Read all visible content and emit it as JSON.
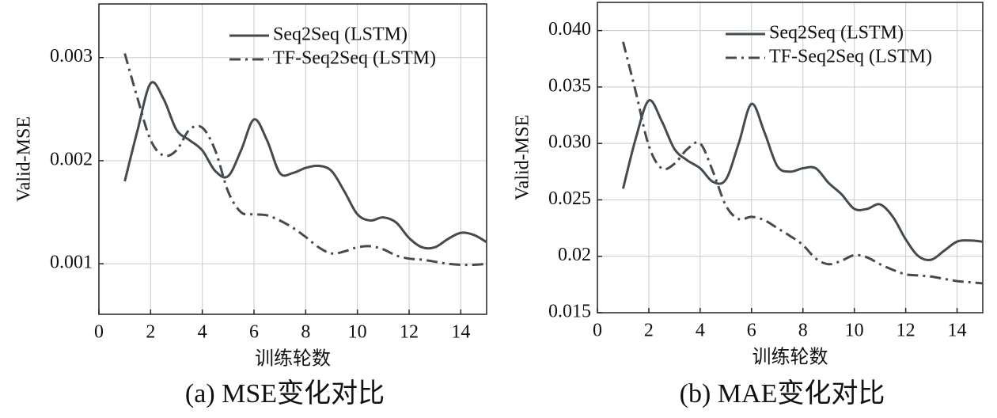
{
  "chart_data": [
    {
      "type": "line",
      "caption": "(a) MSE变化对比",
      "xlabel": "训练轮数",
      "ylabel": "Valid-MSE",
      "x": [
        1,
        1.5,
        2,
        2.5,
        3,
        3.5,
        4,
        4.5,
        5,
        5.5,
        6,
        6.5,
        7,
        7.5,
        8,
        8.5,
        9,
        9.5,
        10,
        10.5,
        11,
        11.5,
        12,
        12.5,
        13,
        13.5,
        14,
        14.5,
        15
      ],
      "series": [
        {
          "name": "Seq2Seq (LSTM)",
          "color": "#434b50",
          "style": "solid",
          "values": [
            0.0018,
            0.0023,
            0.00275,
            0.0026,
            0.0023,
            0.0022,
            0.0021,
            0.0019,
            0.00185,
            0.0021,
            0.0024,
            0.0022,
            0.00188,
            0.00188,
            0.00193,
            0.00195,
            0.0019,
            0.0017,
            0.00148,
            0.00142,
            0.00145,
            0.0014,
            0.00125,
            0.00116,
            0.00116,
            0.00124,
            0.0013,
            0.00128,
            0.00121
          ]
        },
        {
          "name": "TF-Seq2Seq (LSTM)",
          "color": "#434b50",
          "style": "dashdot",
          "values": [
            0.00304,
            0.0026,
            0.0022,
            0.00205,
            0.0021,
            0.0023,
            0.00232,
            0.0021,
            0.0017,
            0.0015,
            0.00148,
            0.00147,
            0.00142,
            0.00135,
            0.00126,
            0.00116,
            0.0011,
            0.00112,
            0.00116,
            0.00117,
            0.00114,
            0.00108,
            0.00105,
            0.00104,
            0.00102,
            0.001,
            0.00099,
            0.00099,
            0.001
          ]
        }
      ],
      "xlim": [
        0,
        15
      ],
      "ylim": [
        0.00051,
        0.00352
      ],
      "xticks": [
        0,
        2,
        4,
        6,
        8,
        10,
        12,
        14
      ],
      "yticks": [
        0.001,
        0.002,
        0.003
      ],
      "grid": true,
      "legend": "upper right"
    },
    {
      "type": "line",
      "caption": "(b) MAE变化对比",
      "xlabel": "训练轮数",
      "ylabel": "Valid-MSE",
      "x": [
        1,
        1.5,
        2,
        2.5,
        3,
        3.5,
        4,
        4.5,
        5,
        5.5,
        6,
        6.5,
        7,
        7.5,
        8,
        8.5,
        9,
        9.5,
        10,
        10.5,
        11,
        11.5,
        12,
        12.5,
        13,
        13.5,
        14,
        14.5,
        15
      ],
      "series": [
        {
          "name": "Seq2Seq (LSTM)",
          "color": "#434b50",
          "style": "solid",
          "values": [
            0.026,
            0.0305,
            0.0338,
            0.032,
            0.0295,
            0.0285,
            0.0278,
            0.0266,
            0.0268,
            0.03,
            0.0335,
            0.031,
            0.028,
            0.0275,
            0.0278,
            0.0278,
            0.0265,
            0.0255,
            0.0242,
            0.0242,
            0.0246,
            0.0235,
            0.0215,
            0.02,
            0.0197,
            0.0205,
            0.0213,
            0.0214,
            0.0213
          ]
        },
        {
          "name": "TF-Seq2Seq (LSTM)",
          "color": "#434b50",
          "style": "dashdot",
          "values": [
            0.039,
            0.0345,
            0.0298,
            0.0278,
            0.0282,
            0.0295,
            0.03,
            0.0275,
            0.0245,
            0.0233,
            0.0235,
            0.0232,
            0.0225,
            0.0218,
            0.021,
            0.0198,
            0.0193,
            0.0196,
            0.0201,
            0.0199,
            0.0193,
            0.0188,
            0.0184,
            0.0183,
            0.0182,
            0.018,
            0.0178,
            0.0177,
            0.0176
          ]
        }
      ],
      "xlim": [
        0,
        15
      ],
      "ylim": [
        0.015,
        0.0425
      ],
      "xticks": [
        0,
        2,
        4,
        6,
        8,
        10,
        12,
        14
      ],
      "yticks": [
        {
          "value": 0.015,
          "label": "0.015"
        },
        0.02,
        {
          "value": 0.025,
          "label": "0.025"
        },
        {
          "value": 0.03,
          "label": "0.030"
        },
        0.035,
        {
          "value": 0.04,
          "label": "0.040"
        }
      ],
      "grid": true,
      "legend": "upper right"
    }
  ]
}
